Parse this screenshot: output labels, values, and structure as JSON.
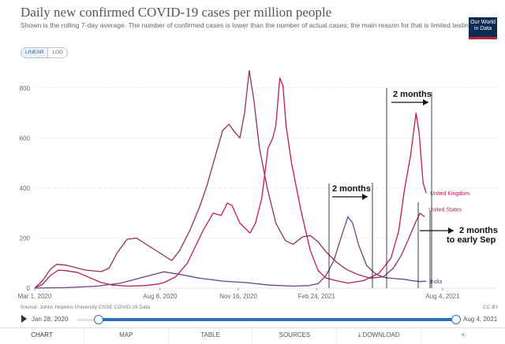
{
  "header": {
    "title": "Daily new confirmed COVID-19 cases per million people",
    "subtitle": "Shown is the rolling 7-day average. The number of confirmed cases is lower than the number of actual cases; the main reason for that is limited testing.",
    "logo_line1": "Our World",
    "logo_line2": "in Data",
    "scale_linear": "LINEAR",
    "scale_log": "LOG"
  },
  "colors": {
    "uk": "#c5175a",
    "us": "#98314c",
    "india": "#6d3e91",
    "axis": "#666666",
    "grid": "#dddddd"
  },
  "chart_data": {
    "type": "line",
    "title": "Daily new confirmed COVID-19 cases per million people",
    "ylim": [
      0,
      900
    ],
    "y_ticks": [
      0,
      200,
      400,
      600,
      800
    ],
    "x_range_days": [
      0,
      520
    ],
    "x_ticks": [
      {
        "day": 0,
        "label": "Mar 1, 2020"
      },
      {
        "day": 160,
        "label": "Aug 8, 2020"
      },
      {
        "day": 260,
        "label": "Nov 16, 2020"
      },
      {
        "day": 360,
        "label": "Feb 24, 2021"
      },
      {
        "day": 521,
        "label": "Aug 4, 2021"
      }
    ],
    "series": [
      {
        "name": "United Kingdom",
        "color": "#c5175a",
        "points": [
          [
            0,
            0
          ],
          [
            10,
            15
          ],
          [
            20,
            50
          ],
          [
            30,
            72
          ],
          [
            40,
            70
          ],
          [
            55,
            62
          ],
          [
            70,
            42
          ],
          [
            85,
            22
          ],
          [
            100,
            12
          ],
          [
            120,
            8
          ],
          [
            140,
            10
          ],
          [
            155,
            15
          ],
          [
            165,
            22
          ],
          [
            180,
            45
          ],
          [
            195,
            100
          ],
          [
            205,
            165
          ],
          [
            215,
            230
          ],
          [
            228,
            300
          ],
          [
            238,
            290
          ],
          [
            246,
            340
          ],
          [
            252,
            330
          ],
          [
            262,
            260
          ],
          [
            275,
            220
          ],
          [
            282,
            260
          ],
          [
            290,
            360
          ],
          [
            298,
            560
          ],
          [
            304,
            600
          ],
          [
            308,
            650
          ],
          [
            313,
            840
          ],
          [
            317,
            810
          ],
          [
            321,
            650
          ],
          [
            328,
            500
          ],
          [
            340,
            310
          ],
          [
            352,
            150
          ],
          [
            362,
            70
          ],
          [
            372,
            40
          ],
          [
            385,
            30
          ],
          [
            400,
            20
          ],
          [
            420,
            30
          ],
          [
            440,
            60
          ],
          [
            455,
            120
          ],
          [
            465,
            230
          ],
          [
            472,
            390
          ],
          [
            480,
            530
          ],
          [
            487,
            700
          ],
          [
            491,
            620
          ],
          [
            496,
            420
          ],
          [
            500,
            380
          ]
        ]
      },
      {
        "name": "United States",
        "color": "#98314c",
        "points": [
          [
            0,
            0
          ],
          [
            10,
            30
          ],
          [
            20,
            75
          ],
          [
            28,
            95
          ],
          [
            40,
            92
          ],
          [
            52,
            82
          ],
          [
            65,
            72
          ],
          [
            85,
            66
          ],
          [
            95,
            80
          ],
          [
            105,
            140
          ],
          [
            118,
            195
          ],
          [
            130,
            200
          ],
          [
            145,
            170
          ],
          [
            160,
            140
          ],
          [
            175,
            110
          ],
          [
            185,
            150
          ],
          [
            198,
            230
          ],
          [
            210,
            320
          ],
          [
            220,
            410
          ],
          [
            230,
            520
          ],
          [
            240,
            630
          ],
          [
            248,
            655
          ],
          [
            254,
            630
          ],
          [
            262,
            600
          ],
          [
            268,
            700
          ],
          [
            274,
            870
          ],
          [
            280,
            750
          ],
          [
            287,
            560
          ],
          [
            297,
            400
          ],
          [
            308,
            260
          ],
          [
            320,
            190
          ],
          [
            330,
            175
          ],
          [
            342,
            205
          ],
          [
            352,
            210
          ],
          [
            362,
            185
          ],
          [
            372,
            145
          ],
          [
            385,
            105
          ],
          [
            398,
            75
          ],
          [
            412,
            55
          ],
          [
            428,
            40
          ],
          [
            445,
            45
          ],
          [
            458,
            80
          ],
          [
            468,
            130
          ],
          [
            478,
            200
          ],
          [
            486,
            260
          ],
          [
            492,
            300
          ],
          [
            498,
            285
          ]
        ]
      },
      {
        "name": "India",
        "color": "#6d3e91",
        "points": [
          [
            0,
            0
          ],
          [
            40,
            2
          ],
          [
            80,
            8
          ],
          [
            110,
            20
          ],
          [
            140,
            45
          ],
          [
            165,
            65
          ],
          [
            185,
            55
          ],
          [
            210,
            40
          ],
          [
            240,
            28
          ],
          [
            270,
            22
          ],
          [
            300,
            12
          ],
          [
            330,
            8
          ],
          [
            350,
            10
          ],
          [
            362,
            18
          ],
          [
            372,
            50
          ],
          [
            382,
            110
          ],
          [
            392,
            210
          ],
          [
            400,
            285
          ],
          [
            406,
            260
          ],
          [
            414,
            170
          ],
          [
            424,
            90
          ],
          [
            436,
            55
          ],
          [
            448,
            42
          ],
          [
            460,
            38
          ],
          [
            472,
            35
          ],
          [
            482,
            30
          ],
          [
            492,
            26
          ],
          [
            500,
            28
          ]
        ]
      }
    ],
    "labels": {
      "uk": "United Kingdom",
      "us": "United States",
      "india": "India"
    },
    "annotations": [
      {
        "text": "2 months"
      },
      {
        "text": "2 months"
      },
      {
        "text": "2 months"
      },
      {
        "text": "to early Sep"
      }
    ]
  },
  "footer": {
    "source": "Source: Johns Hopkins University CSSE COVID-19 Data",
    "license": "CC BY",
    "timeline_start": "Jan 28, 2020",
    "timeline_end": "Aug 4, 2021",
    "tabs": [
      "CHART",
      "MAP",
      "TABLE",
      "SOURCES",
      "DOWNLOAD",
      "SHARE"
    ]
  }
}
